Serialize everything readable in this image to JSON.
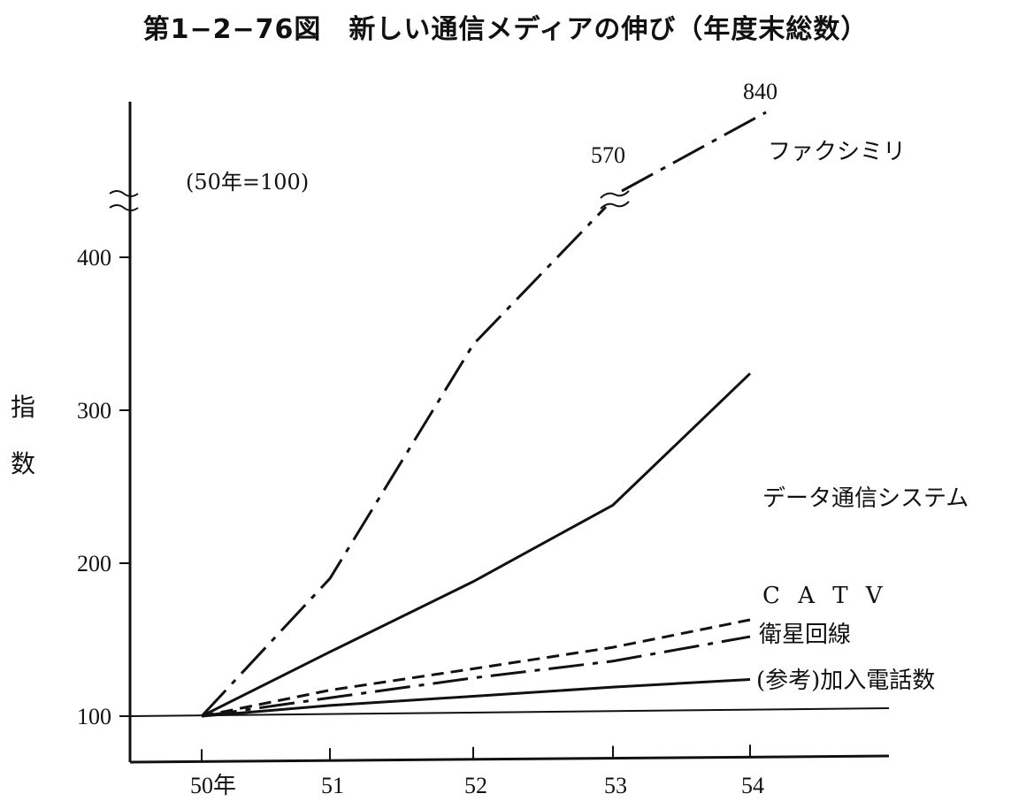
{
  "title": "第1−2−76図　新しい通信メディアの伸び（年度末総数）",
  "chart_data": {
    "type": "line",
    "title": "第1−2−76図　新しい通信メディアの伸び（年度末総数）",
    "subtitle": "(50年=100)",
    "ylabel": "指数",
    "xlabel": "",
    "x": [
      "50年",
      "51",
      "52",
      "53",
      "54"
    ],
    "yticks": [
      "100",
      "200",
      "300",
      "400"
    ],
    "ylim": [
      70,
      500
    ],
    "y_axis_break": true,
    "grid": false,
    "series": [
      {
        "name": "ファクシミリ",
        "values": [
          100,
          190,
          343,
          570,
          840
        ],
        "style": "dash-dot",
        "annotations": [
          "570",
          "840"
        ]
      },
      {
        "name": "データ通信システム",
        "values": [
          100,
          142,
          188,
          238,
          324
        ],
        "style": "solid"
      },
      {
        "name": "C A T V",
        "values": [
          100,
          117,
          131,
          145,
          163
        ],
        "style": "dashed"
      },
      {
        "name": "衛星回線",
        "values": [
          100,
          112,
          125,
          136,
          152
        ],
        "style": "dash-dot"
      },
      {
        "name": "(参考)加入電話数",
        "values": [
          100,
          107,
          113,
          119,
          124
        ],
        "style": "solid"
      }
    ]
  }
}
